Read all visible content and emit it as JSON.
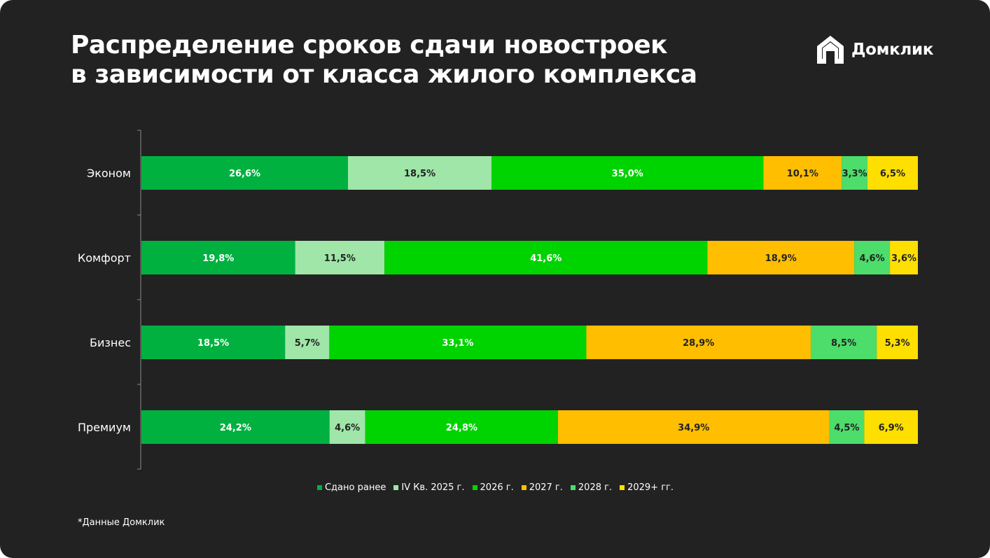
{
  "title_lines": [
    "Распределение сроков сдачи новостроек",
    "в зависимости от класса жилого комплекса"
  ],
  "logo": {
    "text": "Домклик",
    "icon": "domclick-house-icon"
  },
  "footnote": "*Данные Домклик",
  "chart_data": {
    "type": "bar",
    "orientation": "horizontal",
    "stacked": true,
    "categories": [
      "Эконом",
      "Комфорт",
      "Бизнес",
      "Премиум"
    ],
    "series": [
      {
        "name": "Сдано ранее",
        "color": "#00B140",
        "label_color": "#ffffff",
        "values": [
          26.6,
          19.8,
          18.5,
          24.2
        ],
        "labels": [
          "26,6%",
          "19,8%",
          "18,5%",
          "24,2%"
        ]
      },
      {
        "name": "IV Кв. 2025 г.",
        "color": "#9FE6A8",
        "label_color": "#222222",
        "values": [
          18.5,
          11.5,
          5.7,
          4.6
        ],
        "labels": [
          "18,5%",
          "11,5%",
          "5,7%",
          "4,6%"
        ]
      },
      {
        "name": "2026 г.",
        "color": "#00D400",
        "label_color": "#ffffff",
        "values": [
          35.0,
          41.6,
          33.1,
          24.8
        ],
        "labels": [
          "35,0%",
          "41,6%",
          "33,1%",
          "24,8%"
        ]
      },
      {
        "name": "2027 г.",
        "color": "#FFBE00",
        "label_color": "#222222",
        "values": [
          10.1,
          18.9,
          28.9,
          34.9
        ],
        "labels": [
          "10,1%",
          "18,9%",
          "28,9%",
          "34,9%"
        ]
      },
      {
        "name": "2028 г.",
        "color": "#4CDD6B",
        "label_color": "#222222",
        "values": [
          3.3,
          4.6,
          8.5,
          4.5
        ],
        "labels": [
          "3,3%",
          "4,6%",
          "8,5%",
          "4,5%"
        ]
      },
      {
        "name": "2029+ гг.",
        "color": "#FFDF00",
        "label_color": "#222222",
        "values": [
          6.5,
          3.6,
          5.3,
          6.9
        ],
        "labels": [
          "6,5%",
          "3,6%",
          "5,3%",
          "6,9%"
        ]
      }
    ],
    "xlim": [
      0,
      100
    ],
    "grid": false,
    "legend_position": "bottom-center"
  }
}
